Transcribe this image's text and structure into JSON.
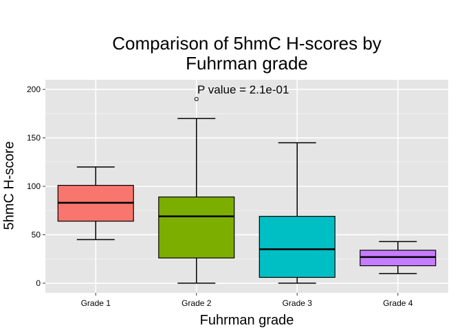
{
  "chart_data": {
    "type": "boxplot",
    "title": "Comparison of 5hmC H-scores by Fuhrman grade",
    "title_lines": [
      "Comparison of 5hmC H-scores by",
      "Fuhrman grade"
    ],
    "xlabel": "Fuhrman grade",
    "ylabel": "5hmC H-score",
    "annotation": "P value = 2.1e-01",
    "ylim": [
      -10,
      210
    ],
    "yticks": [
      0,
      50,
      100,
      150,
      200
    ],
    "grid": true,
    "categories": [
      "Grade 1",
      "Grade 2",
      "Grade 3",
      "Grade 4"
    ],
    "boxes": [
      {
        "category": "Grade 1",
        "color": "#F8766D",
        "whisker_low": 45,
        "q1": 64,
        "median": 83,
        "q3": 101,
        "whisker_high": 120,
        "outliers": []
      },
      {
        "category": "Grade 2",
        "color": "#7CAE00",
        "whisker_low": 0,
        "q1": 26,
        "median": 69,
        "q3": 89,
        "whisker_high": 170,
        "outliers": [
          190
        ]
      },
      {
        "category": "Grade 3",
        "color": "#00BFC4",
        "whisker_low": 0,
        "q1": 6,
        "median": 35,
        "q3": 69,
        "whisker_high": 145,
        "outliers": []
      },
      {
        "category": "Grade 4",
        "color": "#C77CFF",
        "whisker_low": 10,
        "q1": 18,
        "median": 27,
        "q3": 34,
        "whisker_high": 43,
        "outliers": []
      }
    ],
    "panel_background": "#E5E5E5",
    "grid_color": "#FFFFFF"
  }
}
